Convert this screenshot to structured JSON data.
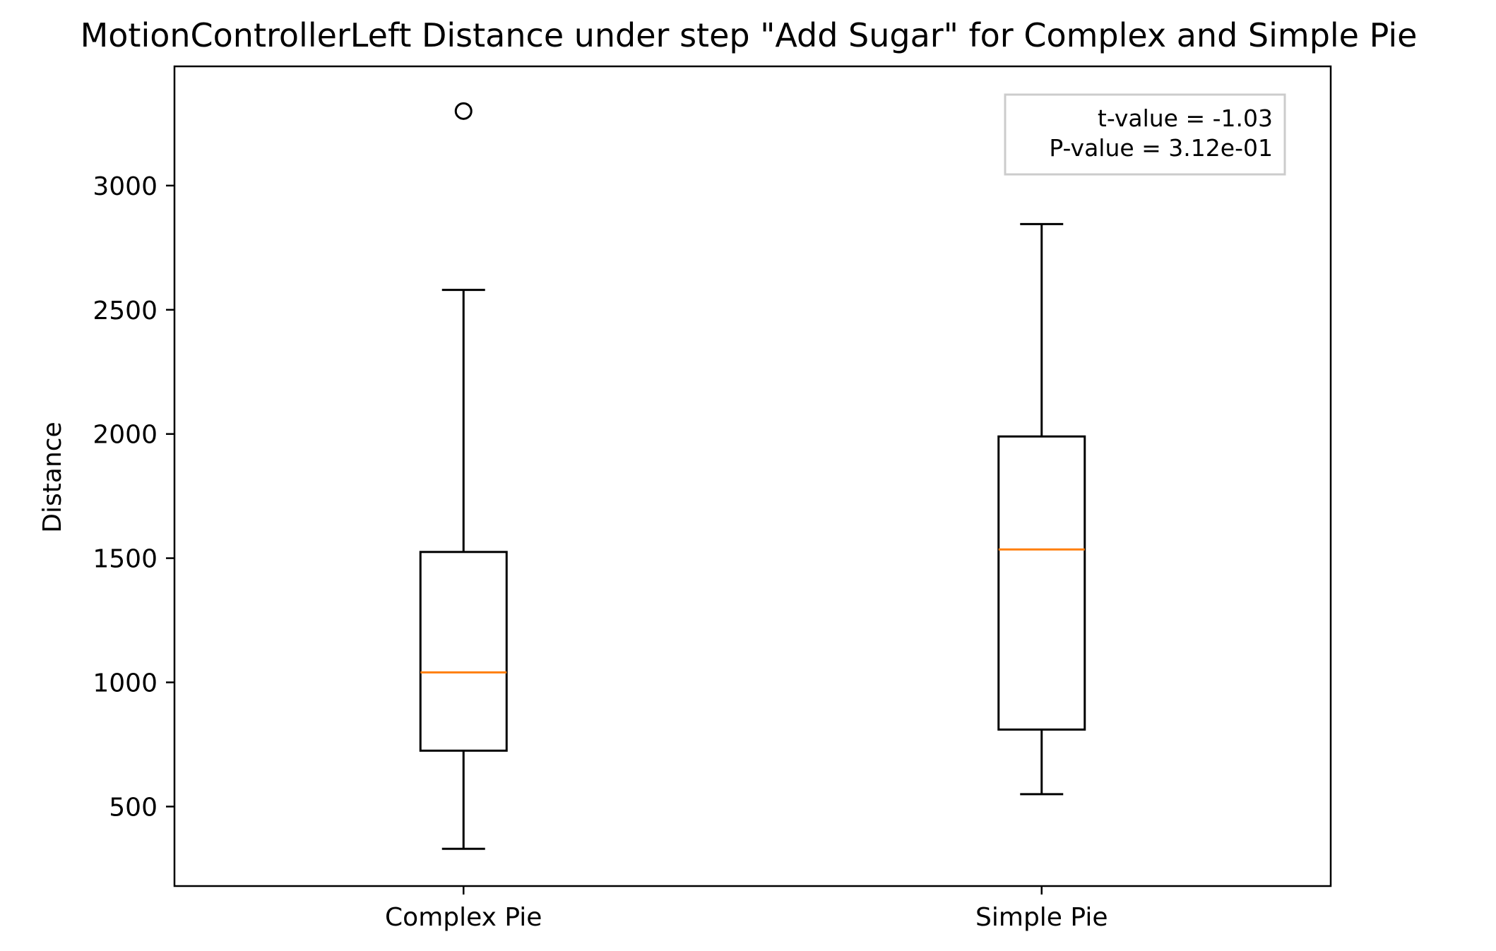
{
  "chart_data": {
    "type": "box",
    "title": "MotionControllerLeft Distance under step \"Add Sugar\" for Complex and Simple Pie",
    "xlabel": "",
    "ylabel": "Distance",
    "ylim": [
      180,
      3480
    ],
    "yticks": [
      500,
      1000,
      1500,
      2000,
      2500,
      3000
    ],
    "grid": false,
    "categories": [
      "Complex Pie",
      "Simple Pie"
    ],
    "boxes": [
      {
        "category": "Complex Pie",
        "whisker_low": 330,
        "q1": 725,
        "median": 1040,
        "q3": 1525,
        "whisker_high": 2580,
        "outliers": [
          3300
        ]
      },
      {
        "category": "Simple Pie",
        "whisker_low": 550,
        "q1": 810,
        "median": 1535,
        "q3": 1990,
        "whisker_high": 2845,
        "outliers": []
      }
    ],
    "colors": {
      "box": "#000000",
      "median": "#ff7f0e"
    },
    "annotation": {
      "placement": "top-right",
      "lines": [
        "t-value = -1.03",
        "P-value = 3.12e-01"
      ],
      "border_color": "#cccccc"
    }
  }
}
